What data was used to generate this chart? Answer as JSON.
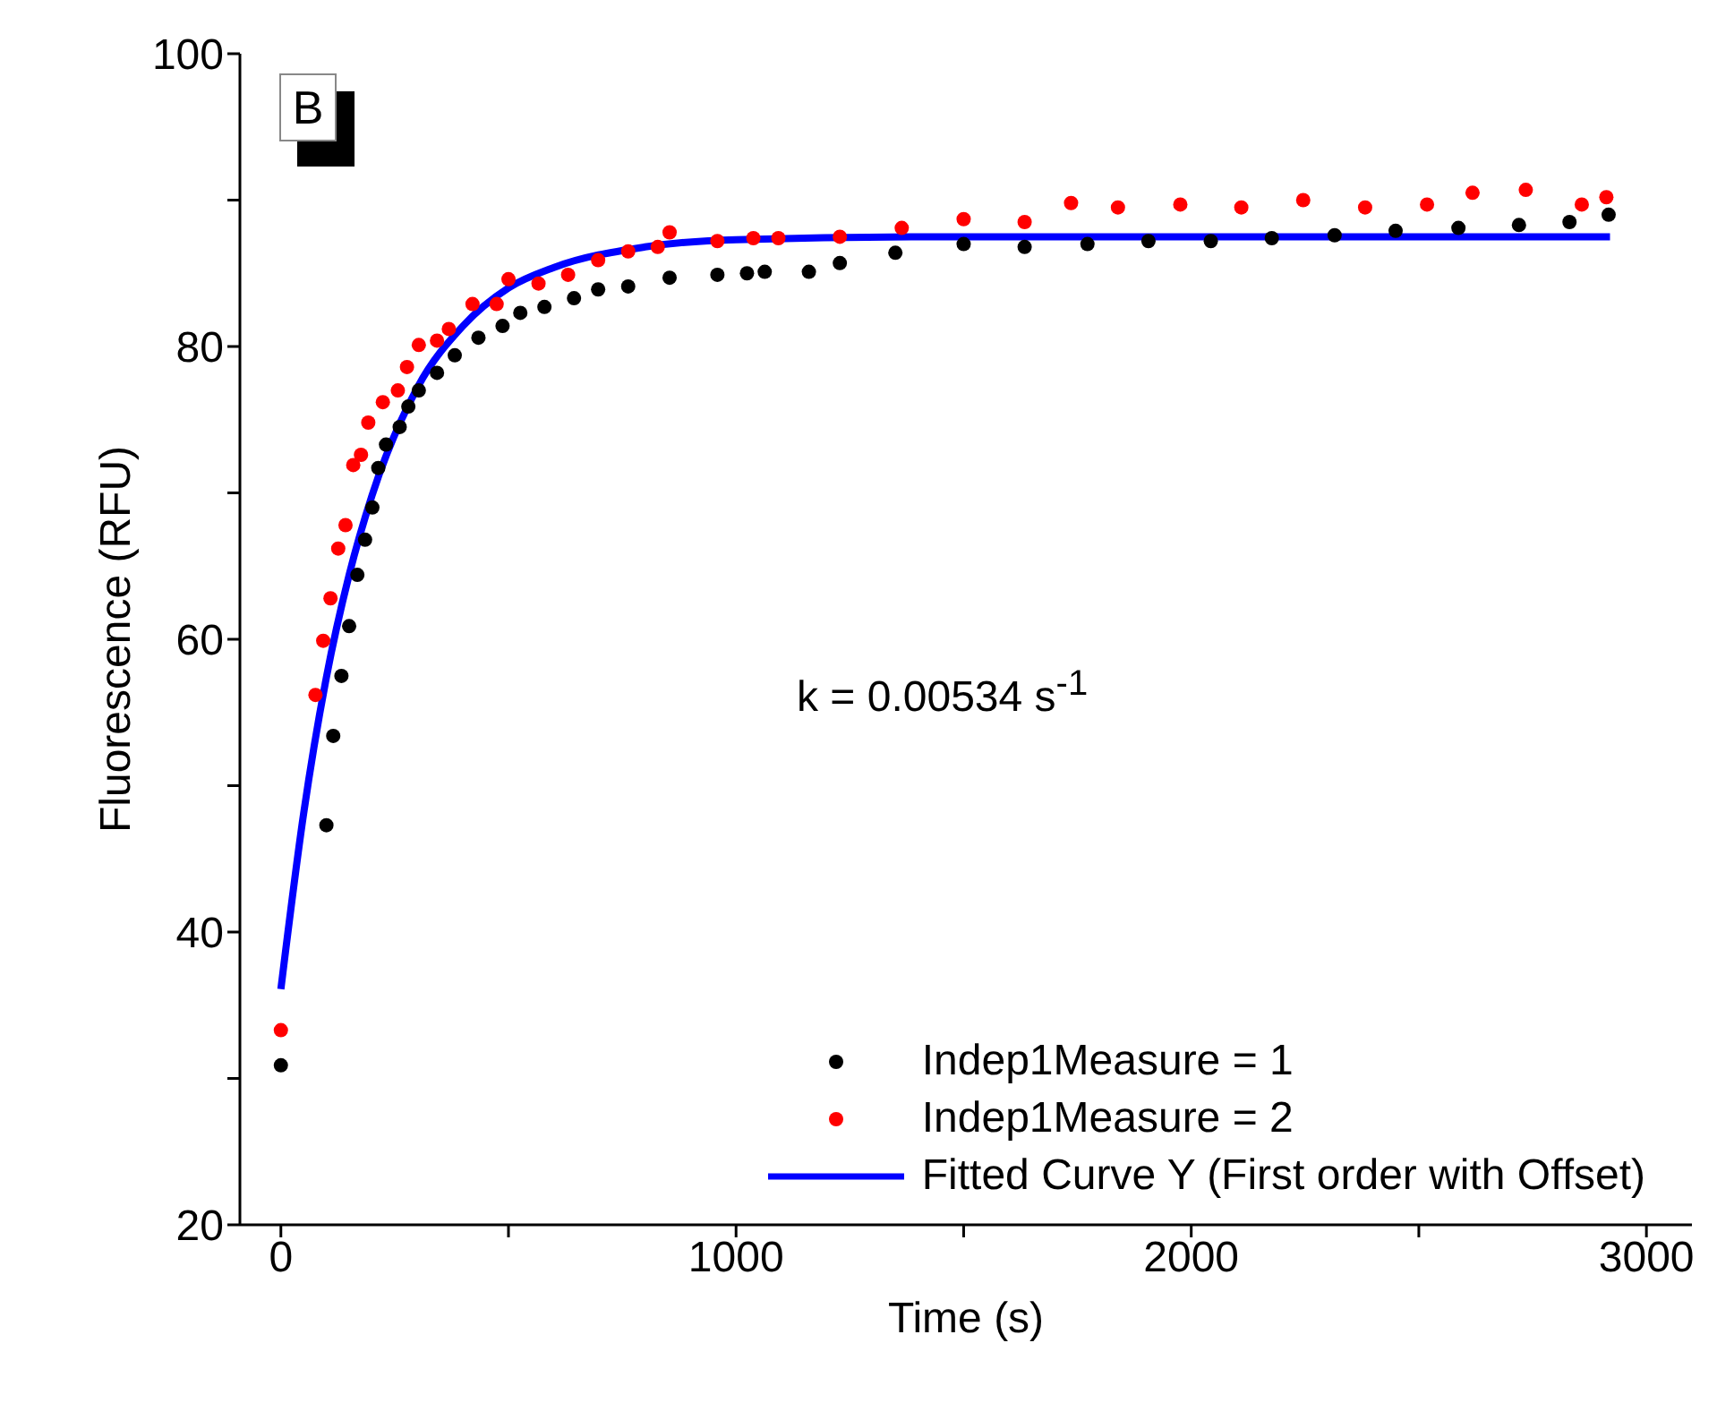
{
  "chart_data": {
    "type": "scatter",
    "xlabel": "Time (s)",
    "ylabel": "Fluorescence (RFU)",
    "annotations": [
      "B",
      "k = 0.00534 s$^{-1}$"
    ],
    "xlim": [
      -90,
      3100
    ],
    "xticks": [
      0,
      {
        "value": 500,
        "label": null
      },
      1000,
      {
        "value": 1500,
        "label": null
      },
      2000,
      {
        "value": 2500,
        "label": null
      },
      3000
    ],
    "ylim": [
      20,
      100
    ],
    "yticks": [
      20,
      {
        "value": 30,
        "label": null
      },
      40,
      {
        "value": 50,
        "label": null
      },
      60,
      {
        "value": 70,
        "label": null
      },
      80,
      {
        "value": 90,
        "label": null
      },
      100
    ],
    "legend": "bottom right",
    "line_style": "solid",
    "series": [
      {
        "name": "Indep1Measure = 1",
        "marker": "circle",
        "color": "#000000",
        "x": [
          0,
          100,
          115,
          133,
          150,
          168,
          185,
          201,
          214,
          231,
          261,
          280,
          303,
          343,
          382,
          434,
          487,
          526,
          579,
          644,
          697,
          763,
          854,
          959,
          1024,
          1063,
          1160,
          1228,
          1350,
          1500,
          1634,
          1772,
          1906,
          2043,
          2177,
          2315,
          2449,
          2587,
          2720,
          2831,
          2917
        ],
        "values": [
          30.9,
          47.3,
          53.4,
          57.5,
          60.9,
          64.4,
          66.8,
          69.0,
          71.7,
          73.3,
          74.5,
          75.9,
          77.0,
          78.2,
          79.4,
          80.6,
          81.4,
          82.3,
          82.7,
          83.3,
          83.9,
          84.1,
          84.7,
          84.9,
          85.0,
          85.1,
          85.1,
          85.7,
          86.4,
          87.0,
          86.8,
          87.0,
          87.2,
          87.2,
          87.4,
          87.6,
          87.9,
          88.1,
          88.3,
          88.5,
          89.0
        ]
      },
      {
        "name": "Indep1Measure = 2",
        "marker": "circle",
        "color": "#ff0000",
        "x": [
          0,
          76,
          93,
          109,
          126,
          142,
          159,
          176,
          192,
          224,
          257,
          277,
          303,
          343,
          369,
          421,
          474,
          500,
          566,
          631,
          697,
          763,
          828,
          854,
          959,
          1038,
          1093,
          1228,
          1364,
          1500,
          1634,
          1736,
          1839,
          1976,
          2110,
          2246,
          2382,
          2518,
          2618,
          2735,
          2858,
          2912
        ],
        "values": [
          33.3,
          56.2,
          59.9,
          62.8,
          66.2,
          67.8,
          71.9,
          72.6,
          74.8,
          76.2,
          77.0,
          78.6,
          80.1,
          80.4,
          81.2,
          82.9,
          82.9,
          84.6,
          84.3,
          84.9,
          85.9,
          86.5,
          86.8,
          87.8,
          87.2,
          87.4,
          87.4,
          87.5,
          88.1,
          88.7,
          88.5,
          89.8,
          89.5,
          89.7,
          89.5,
          90.0,
          89.5,
          89.7,
          90.5,
          90.7,
          89.7,
          90.2
        ]
      },
      {
        "name": "Fitted Curve Y (First order with Offset)",
        "type": "line",
        "color": "#0000ff",
        "marker": "none",
        "x": [
          0,
          50,
          100,
          150,
          200,
          300,
          400,
          500,
          600,
          800,
          1000,
          1500,
          2000,
          2920
        ],
        "values": [
          36.1,
          48.1,
          57.4,
          64.4,
          69.8,
          77.2,
          81.4,
          84.0,
          85.4,
          86.8,
          87.3,
          87.5,
          87.5,
          87.5
        ]
      }
    ]
  }
}
